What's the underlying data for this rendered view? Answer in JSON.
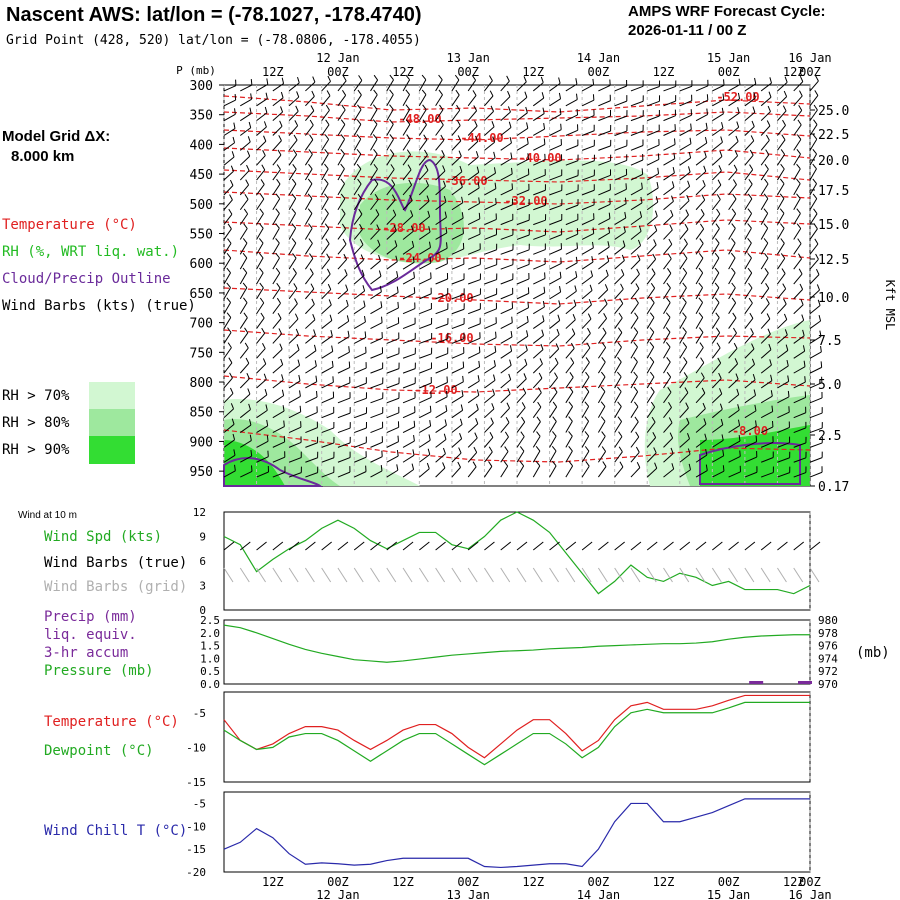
{
  "header": {
    "title": "Nascent AWS:  lat/lon = (-78.1027, -178.4740)",
    "subtitle": "Grid Point (428, 520) lat/lon = (-78.0806, -178.4055)",
    "cycle_line1": "AMPS WRF Forecast Cycle:",
    "cycle_line2": "2026-01-11 / 00  Z"
  },
  "left": {
    "grid_label": "Model Grid ΔX:",
    "grid_value": "8.000 km",
    "legend": [
      {
        "text": "Temperature (°C)",
        "color": "#e02020"
      },
      {
        "text": "RH (%, WRT liq. wat.)",
        "color": "#22bb22"
      },
      {
        "text": "Cloud/Precip Outline",
        "color": "#6a2a9a"
      },
      {
        "text": "Wind Barbs (kts) (true)",
        "color": "#000000"
      }
    ],
    "rh_keys": [
      {
        "text": "RH > 70%",
        "color": "#d2f7d2"
      },
      {
        "text": "RH > 80%",
        "color": "#9ee89e"
      },
      {
        "text": "RH > 90%",
        "color": "#33dd33"
      }
    ]
  },
  "time_axis": {
    "top_labels": [
      "12Z",
      "00Z",
      "12Z",
      "00Z",
      "12Z",
      "00Z",
      "12Z",
      "00Z",
      "12Z",
      "00Z"
    ],
    "date_labels": [
      "12 Jan",
      "13 Jan",
      "14 Jan",
      "15 Jan",
      "16 Jan"
    ],
    "p_label": "P (mb)"
  },
  "upper_panel": {
    "pressure_ticks": [
      "300",
      "350",
      "400",
      "450",
      "500",
      "550",
      "600",
      "650",
      "700",
      "750",
      "800",
      "850",
      "900",
      "950"
    ],
    "kft_ticks": [
      "25.0",
      "22.5",
      "20.0",
      "17.5",
      "15.0",
      "12.5",
      "10.0",
      "7.5",
      "5.0",
      "2.5",
      "0.17"
    ],
    "kft_label": "Kft MSL",
    "temp_labels": [
      "-52.00",
      "-48.00",
      "-44.00",
      "-40.00",
      "-36.00",
      "-32.00",
      "-28.00",
      "-24.00",
      "-20.00",
      "-16.00",
      "-12.00",
      "-8.00"
    ]
  },
  "wind_panel": {
    "title": "Wind at 10 m",
    "legend": [
      {
        "text": "Wind Spd (kts)",
        "color": "#22aa22"
      },
      {
        "text": "Wind Barbs (true)",
        "color": "#000000"
      },
      {
        "text": "Wind Barbs (grid)",
        "color": "#b0b0b0"
      }
    ],
    "yticks": [
      "12",
      "9",
      "6",
      "3",
      "0"
    ]
  },
  "precip_panel": {
    "legend": [
      {
        "text": "Precip (mm)",
        "color": "#7a2a9a"
      },
      {
        "text": "liq. equiv.",
        "color": "#7a2a9a"
      },
      {
        "text": "3-hr accum",
        "color": "#7a2a9a"
      },
      {
        "text": "Pressure (mb)",
        "color": "#22aa22"
      }
    ],
    "left_ticks": [
      "2.5",
      "2.0",
      "1.5",
      "1.0",
      "0.5",
      "0.0"
    ],
    "right_ticks": [
      "980",
      "978",
      "976",
      "974",
      "972",
      "970"
    ],
    "right_unit": "(mb)"
  },
  "temp_panel": {
    "legend": [
      {
        "text": "Temperature (°C)",
        "color": "#e02020"
      },
      {
        "text": "Dewpoint (°C)",
        "color": "#22aa22"
      }
    ],
    "yticks": [
      "-5",
      "-10",
      "-15"
    ]
  },
  "chill_panel": {
    "legend": [
      {
        "text": "Wind Chill T (°C)",
        "color": "#2a2aaa"
      }
    ],
    "yticks": [
      "-5",
      "-10",
      "-15",
      "-20"
    ]
  },
  "chart_data": [
    {
      "type": "line",
      "title": "Wind at 10 m",
      "ylabel": "Wind Spd (kts)",
      "ylim": [
        0,
        12
      ],
      "x": [
        0,
        3,
        6,
        9,
        12,
        15,
        18,
        21,
        24,
        27,
        30,
        33,
        36,
        39,
        42,
        45,
        48,
        51,
        54,
        57,
        60,
        63,
        66,
        69,
        72,
        75,
        78,
        81,
        84,
        87,
        90,
        93,
        96,
        99,
        102,
        105,
        108
      ],
      "series": [
        {
          "name": "Wind Spd (kts)",
          "color": "#22aa22",
          "values": [
            9,
            8,
            4.7,
            6.2,
            7.5,
            8.5,
            10,
            11,
            10,
            8.5,
            7.5,
            8.5,
            9.5,
            9.5,
            8,
            7.5,
            9,
            11,
            12,
            11,
            9.5,
            7,
            4.5,
            2,
            3.5,
            5.5,
            4,
            3.5,
            4.5,
            4,
            3,
            3.5,
            2.5,
            2.5,
            2.5,
            2,
            3
          ]
        }
      ]
    },
    {
      "type": "line",
      "title": "Pressure (mb)",
      "ylim": [
        970,
        980
      ],
      "x": [
        0,
        3,
        6,
        9,
        12,
        15,
        18,
        21,
        24,
        27,
        30,
        33,
        36,
        39,
        42,
        45,
        48,
        51,
        54,
        57,
        60,
        63,
        66,
        69,
        72,
        75,
        78,
        81,
        84,
        87,
        90,
        93,
        96,
        99,
        102,
        105,
        108
      ],
      "series": [
        {
          "name": "Pressure (mb)",
          "color": "#22aa22",
          "values": [
            979.2,
            978.8,
            978.0,
            977.1,
            976.2,
            975.4,
            974.8,
            974.3,
            973.8,
            973.6,
            973.4,
            973.6,
            973.9,
            974.2,
            974.5,
            974.7,
            974.9,
            975.1,
            975.2,
            975.3,
            975.5,
            975.6,
            975.7,
            975.9,
            976.0,
            976.1,
            976.2,
            976.3,
            976.3,
            976.4,
            976.6,
            977.0,
            977.3,
            977.5,
            977.6,
            977.7,
            977.7
          ]
        },
        {
          "name": "Precip (mm)",
          "color": "#7a2a9a",
          "values": [
            0,
            0,
            0,
            0,
            0,
            0,
            0,
            0,
            0,
            0,
            0,
            0,
            0,
            0,
            0,
            0,
            0,
            0,
            0,
            0,
            0,
            0,
            0,
            0,
            0,
            0,
            0,
            0,
            0,
            0,
            0,
            0,
            0,
            0.05,
            0,
            0,
            0.1
          ]
        }
      ]
    },
    {
      "type": "line",
      "ylim": [
        -15,
        -2
      ],
      "x": [
        0,
        3,
        6,
        9,
        12,
        15,
        18,
        21,
        24,
        27,
        30,
        33,
        36,
        39,
        42,
        45,
        48,
        51,
        54,
        57,
        60,
        63,
        66,
        69,
        72,
        75,
        78,
        81,
        84,
        87,
        90,
        93,
        96,
        99,
        102,
        105,
        108
      ],
      "series": [
        {
          "name": "Temperature (°C)",
          "color": "#e02020",
          "values": [
            -6,
            -9,
            -10.3,
            -9.5,
            -8,
            -7,
            -7,
            -7.5,
            -9,
            -10.3,
            -9,
            -7.5,
            -6.7,
            -6.7,
            -8,
            -10,
            -11.5,
            -9.5,
            -7.5,
            -6,
            -6,
            -8,
            -10.5,
            -9,
            -6,
            -4,
            -3.5,
            -4.5,
            -4.5,
            -4.5,
            -4,
            -3.2,
            -2.5,
            -2.5,
            -2.5,
            -2.5,
            -2.5
          ]
        },
        {
          "name": "Dewpoint (°C)",
          "color": "#22aa22",
          "values": [
            -7.5,
            -9,
            -10.3,
            -10,
            -8.5,
            -8,
            -8,
            -9,
            -10.5,
            -12,
            -10.5,
            -9,
            -8,
            -8,
            -9.5,
            -11,
            -12.5,
            -11,
            -9.5,
            -8,
            -8,
            -9.5,
            -11.5,
            -10,
            -7,
            -5,
            -4.5,
            -5,
            -5,
            -5,
            -5,
            -4.3,
            -3.5,
            -3.5,
            -3.5,
            -3.5,
            -3.5
          ]
        }
      ]
    },
    {
      "type": "line",
      "ylim": [
        -20,
        -2.5
      ],
      "x": [
        0,
        3,
        6,
        9,
        12,
        15,
        18,
        21,
        24,
        27,
        30,
        33,
        36,
        39,
        42,
        45,
        48,
        51,
        54,
        57,
        60,
        63,
        66,
        69,
        72,
        75,
        78,
        81,
        84,
        87,
        90,
        93,
        96,
        99,
        102,
        105,
        108
      ],
      "series": [
        {
          "name": "Wind Chill T (°C)",
          "color": "#2a2aaa",
          "values": [
            -15,
            -13.5,
            -10.5,
            -12.5,
            -16,
            -18.3,
            -18,
            -18.2,
            -18.5,
            -18.3,
            -17.5,
            -17,
            -17,
            -17,
            -17,
            -17,
            -18.8,
            -19,
            -18.8,
            -18.5,
            -18.2,
            -18.2,
            -18.8,
            -15,
            -9,
            -5,
            -5,
            -9,
            -9,
            -8,
            -7,
            -5.5,
            -4,
            -4,
            -4,
            -4,
            -4
          ]
        }
      ]
    }
  ]
}
